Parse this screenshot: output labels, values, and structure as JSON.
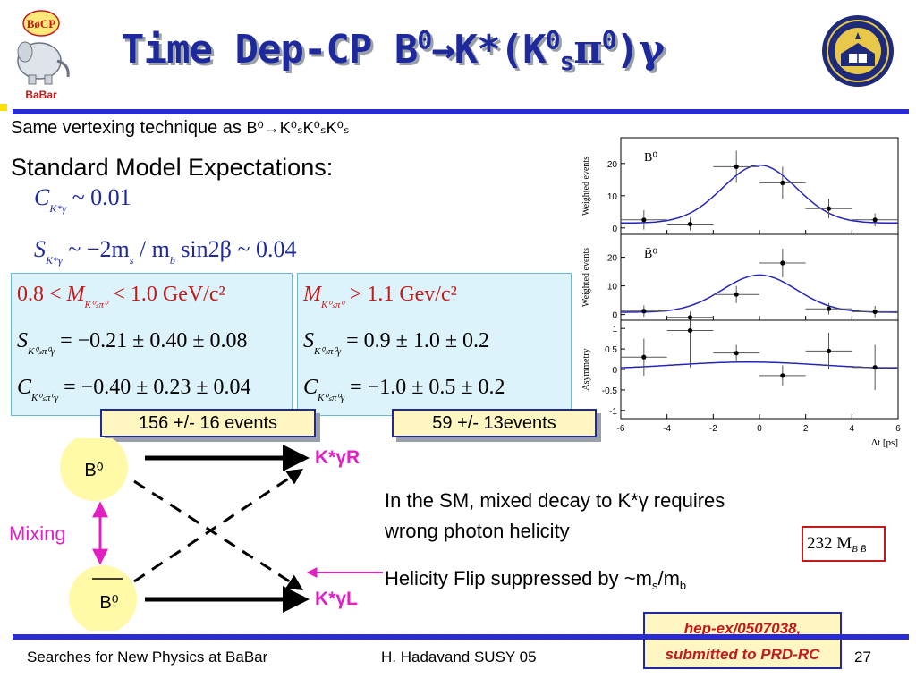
{
  "slide": {
    "title_pre": "Time Dep-CP B",
    "title_sup1": "0",
    "title_arrow": "→",
    "title_kstar": "K*(K",
    "title_sup2": "0",
    "title_sub1": "s",
    "title_pi": "π",
    "title_sup3": "0",
    "title_close": ")",
    "title_gamma": "γ",
    "logo_left_text": "BaBar",
    "logo_left_badge": "BøCP",
    "line1_text": "Same vertexing technique as ",
    "line1_formula": "B⁰→K⁰ₛK⁰ₛK⁰ₛ",
    "line2_text": "Standard Model Expectations:",
    "expect_c_sym": "C",
    "expect_c_sub": "K*γ",
    "expect_c_val": "~ 0.01",
    "expect_s_sym": "S",
    "expect_s_sub": "K*γ",
    "expect_s_rhs": "~ −2m",
    "expect_s_ms": "s",
    "expect_s_mid": " / m",
    "expect_s_mb": "b",
    "expect_s_tail": " sin2β ~ 0.04",
    "box_left": {
      "head_pre": "0.8 < ",
      "head_sym": "M",
      "head_sub": "K⁰ₛπ⁰",
      "head_post": " < 1.0 GeV/c²",
      "s_sym": "S",
      "s_sub": "K⁰ₛπ⁰γ",
      "s_val": "= −0.21 ± 0.40 ± 0.08",
      "c_sym": "C",
      "c_sub": "K⁰ₛπ⁰γ",
      "c_val": "= −0.40 ± 0.23 ± 0.04"
    },
    "box_right": {
      "head_sym": "M",
      "head_sub": "K⁰ₛπ⁰",
      "head_post": " > 1.1 Gev/c²",
      "s_sym": "S",
      "s_sub": "K⁰ₛπ⁰γ",
      "s_val": "= 0.9 ± 1.0 ± 0.2",
      "c_sym": "C",
      "c_sub": "K⁰ₛπ⁰γ",
      "c_val": "= −1.0 ± 0.5 ± 0.2"
    },
    "events_left": "156 +/- 16 events",
    "events_right": "59 +/- 13events",
    "diagram": {
      "b0": "B⁰",
      "b0bar": "B⁰",
      "mixing": "Mixing",
      "kg_r": "K*γR",
      "kg_l": "K*γL"
    },
    "note1_line1": "In the SM, mixed decay to K*γ requires",
    "note1_line2": "wrong photon helicity",
    "note2_pre": "Helicity Flip suppressed by ~m",
    "note2_sub1": "s",
    "note2_mid": "/m",
    "note2_sub2": "b",
    "lumi_val": "232 M",
    "lumi_sub": "B B̄",
    "ref_line1": "hep-ex/0507038,",
    "ref_line2": "submitted to PRD-RC",
    "footer_left": "Searches for New Physics at BaBar",
    "footer_mid": "H. Hadavand  SUSY 05",
    "page_number": "27",
    "colors": {
      "title": "#1e2a9c",
      "rule": "#2b2bd6",
      "accent_red": "#c21a1a",
      "magenta": "#e020c0",
      "box_fill": "#ddf3fb",
      "highlight": "#fff6c2",
      "fit_curve": "#2424b8"
    }
  },
  "chart_data": [
    {
      "type": "scatter",
      "panel": "top",
      "label": "B⁰",
      "ylabel": "Weighted events",
      "ylim": [
        -2,
        28
      ],
      "yticks": [
        0,
        10,
        20
      ],
      "xlim": [
        -6,
        6
      ],
      "xticks": [
        -6,
        -4,
        -2,
        0,
        2,
        4,
        6
      ],
      "grid": false,
      "points": [
        {
          "x": -5,
          "y": 2.5,
          "yerr": 3,
          "xerr": 1
        },
        {
          "x": -3,
          "y": 1.2,
          "yerr": 2,
          "xerr": 1
        },
        {
          "x": -1,
          "y": 19,
          "yerr": 5,
          "xerr": 1
        },
        {
          "x": 1,
          "y": 14,
          "yerr": 5,
          "xerr": 1
        },
        {
          "x": 3,
          "y": 6,
          "yerr": 3,
          "xerr": 1
        },
        {
          "x": 5,
          "y": 2.5,
          "yerr": 2,
          "xerr": 1
        }
      ],
      "curve": {
        "amplitude": 18,
        "width": 1.6,
        "center": 0,
        "baseline": 1.5
      }
    },
    {
      "type": "scatter",
      "panel": "middle",
      "label": "B̄⁰",
      "ylabel": "Weighted events",
      "ylim": [
        -2,
        28
      ],
      "yticks": [
        0,
        10,
        20
      ],
      "xlim": [
        -6,
        6
      ],
      "xticks": [
        -6,
        -4,
        -2,
        0,
        2,
        4,
        6
      ],
      "grid": false,
      "points": [
        {
          "x": -5,
          "y": 1.2,
          "yerr": 2,
          "xerr": 1
        },
        {
          "x": -3,
          "y": -1,
          "yerr": 2,
          "xerr": 1
        },
        {
          "x": -1,
          "y": 7,
          "yerr": 3,
          "xerr": 1
        },
        {
          "x": 1,
          "y": 18,
          "yerr": 5,
          "xerr": 1
        },
        {
          "x": 3,
          "y": 2,
          "yerr": 2,
          "xerr": 1
        },
        {
          "x": 5,
          "y": 1,
          "yerr": 2,
          "xerr": 1
        }
      ],
      "curve": {
        "amplitude": 13,
        "width": 1.6,
        "center": 0,
        "baseline": 0.8
      }
    },
    {
      "type": "scatter",
      "panel": "bottom",
      "label": "",
      "ylabel": "Asymmetry",
      "xlabel": "Δt [ps]",
      "ylim": [
        -1.2,
        1.2
      ],
      "yticks": [
        -1,
        -0.5,
        0,
        0.5,
        1
      ],
      "xlim": [
        -6,
        6
      ],
      "xticks": [
        -6,
        -4,
        -2,
        0,
        2,
        4,
        6
      ],
      "grid": false,
      "points": [
        {
          "x": -5,
          "y": 0.3,
          "yerr": 0.45,
          "xerr": 1
        },
        {
          "x": -3,
          "y": 0.95,
          "yerr": 0.9,
          "xerr": 1
        },
        {
          "x": -1,
          "y": 0.4,
          "yerr": 0.2,
          "xerr": 1
        },
        {
          "x": 1,
          "y": -0.15,
          "yerr": 0.25,
          "xerr": 1
        },
        {
          "x": 3,
          "y": 0.45,
          "yerr": 0.45,
          "xerr": 1
        },
        {
          "x": 5,
          "y": 0.05,
          "yerr": 0.55,
          "xerr": 1
        }
      ],
      "curve": {
        "amplitude": 0.18,
        "width": 3.2,
        "center": -0.5,
        "baseline": 0
      }
    }
  ]
}
